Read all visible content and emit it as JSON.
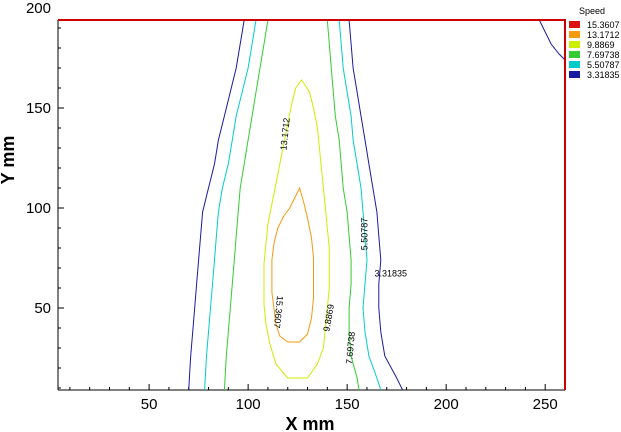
{
  "chart_data": {
    "type": "contour",
    "legend": {
      "title": "Speed",
      "levels": [
        {
          "label": "15.3607",
          "color": "#dd1111"
        },
        {
          "label": "13.1712",
          "color": "#f59a0c"
        },
        {
          "label": "9.8869",
          "color": "#ccee00"
        },
        {
          "label": "7.69738",
          "color": "#33cc33"
        },
        {
          "label": "5.50787",
          "color": "#00cccc"
        },
        {
          "label": "3.31835",
          "color": "#1a1aa0"
        }
      ]
    },
    "xlabel": "X mm",
    "ylabel": "Y mm",
    "xlim": [
      4,
      260
    ],
    "ylim": [
      9,
      194
    ],
    "xticks": [
      50,
      100,
      150,
      200,
      250
    ],
    "yticks": [
      50,
      100,
      150,
      200
    ],
    "plot_border_color": "#cc0000",
    "contours": [
      {
        "name": "contour-3-31835-left",
        "color": "#1a1aa0",
        "points": [
          [
            98,
            194
          ],
          [
            96,
            182
          ],
          [
            94,
            170
          ],
          [
            91,
            158
          ],
          [
            88,
            146
          ],
          [
            85,
            134
          ],
          [
            83,
            122
          ],
          [
            80,
            110
          ],
          [
            77,
            98
          ],
          [
            76,
            86
          ],
          [
            75,
            74
          ],
          [
            74,
            62
          ],
          [
            73,
            50
          ],
          [
            72,
            38
          ],
          [
            71,
            26
          ],
          [
            70,
            9
          ]
        ]
      },
      {
        "name": "contour-3-31835-right",
        "color": "#1a1aa0",
        "points": [
          [
            151,
            194
          ],
          [
            152,
            182
          ],
          [
            153,
            170
          ],
          [
            155,
            158
          ],
          [
            157,
            146
          ],
          [
            159,
            134
          ],
          [
            161,
            122
          ],
          [
            163,
            110
          ],
          [
            165,
            98
          ],
          [
            166,
            86
          ],
          [
            167,
            74
          ],
          [
            166,
            62
          ],
          [
            166,
            50
          ],
          [
            167,
            38
          ],
          [
            169,
            26
          ],
          [
            175,
            15
          ],
          [
            178,
            9
          ]
        ]
      },
      {
        "name": "contour-3-31835-corner",
        "color": "#1a1aa0",
        "points": [
          [
            247,
            194
          ],
          [
            250,
            188
          ],
          [
            253,
            182
          ],
          [
            257,
            177
          ],
          [
            260,
            174
          ]
        ]
      },
      {
        "name": "contour-5-50787-left",
        "color": "#00cccc",
        "points": [
          [
            104,
            194
          ],
          [
            102,
            182
          ],
          [
            100,
            170
          ],
          [
            97,
            158
          ],
          [
            94,
            146
          ],
          [
            92,
            134
          ],
          [
            90,
            122
          ],
          [
            87,
            110
          ],
          [
            85,
            98
          ],
          [
            84,
            86
          ],
          [
            83,
            74
          ],
          [
            82,
            62
          ],
          [
            81,
            50
          ],
          [
            80,
            38
          ],
          [
            79,
            26
          ],
          [
            78,
            9
          ]
        ]
      },
      {
        "name": "contour-5-50787-right",
        "color": "#00cccc",
        "points": [
          [
            146,
            194
          ],
          [
            147,
            182
          ],
          [
            148,
            170
          ],
          [
            150,
            158
          ],
          [
            152,
            146
          ],
          [
            153,
            134
          ],
          [
            155,
            122
          ],
          [
            157,
            110
          ],
          [
            158,
            98
          ],
          [
            159,
            86
          ],
          [
            160,
            74
          ],
          [
            159,
            62
          ],
          [
            158,
            50
          ],
          [
            159,
            38
          ],
          [
            161,
            26
          ],
          [
            165,
            15
          ],
          [
            167,
            9
          ]
        ]
      },
      {
        "name": "contour-7-69738-left",
        "color": "#33cc33",
        "points": [
          [
            110,
            194
          ],
          [
            108,
            182
          ],
          [
            106,
            170
          ],
          [
            104,
            158
          ],
          [
            102,
            146
          ],
          [
            100,
            134
          ],
          [
            98,
            122
          ],
          [
            96,
            110
          ],
          [
            95,
            98
          ],
          [
            94,
            86
          ],
          [
            93,
            74
          ],
          [
            92,
            62
          ],
          [
            91,
            50
          ],
          [
            90,
            38
          ],
          [
            89,
            26
          ],
          [
            88,
            9
          ]
        ]
      },
      {
        "name": "contour-7-69738-right",
        "color": "#33cc33",
        "points": [
          [
            140,
            194
          ],
          [
            141,
            182
          ],
          [
            142,
            170
          ],
          [
            143,
            158
          ],
          [
            144,
            146
          ],
          [
            146,
            134
          ],
          [
            147,
            122
          ],
          [
            148,
            110
          ],
          [
            150,
            98
          ],
          [
            151,
            86
          ],
          [
            152,
            74
          ],
          [
            152,
            62
          ],
          [
            151,
            50
          ],
          [
            151,
            38
          ],
          [
            152,
            26
          ],
          [
            155,
            15
          ],
          [
            156,
            9
          ]
        ]
      },
      {
        "name": "contour-9-8869",
        "color": "#ccee00",
        "closed": true,
        "points": [
          [
            127,
            164
          ],
          [
            131,
            158
          ],
          [
            133,
            150
          ],
          [
            135,
            140
          ],
          [
            136,
            130
          ],
          [
            137,
            120
          ],
          [
            138,
            110
          ],
          [
            139,
            100
          ],
          [
            140,
            90
          ],
          [
            141,
            80
          ],
          [
            141,
            70
          ],
          [
            141,
            60
          ],
          [
            140,
            50
          ],
          [
            139,
            40
          ],
          [
            138,
            30
          ],
          [
            135,
            22
          ],
          [
            130,
            15
          ],
          [
            120,
            15
          ],
          [
            114,
            22
          ],
          [
            111,
            32
          ],
          [
            109,
            42
          ],
          [
            108,
            52
          ],
          [
            108,
            62
          ],
          [
            108,
            72
          ],
          [
            109,
            82
          ],
          [
            110,
            92
          ],
          [
            112,
            102
          ],
          [
            114,
            112
          ],
          [
            116,
            122
          ],
          [
            118,
            132
          ],
          [
            120,
            142
          ],
          [
            122,
            152
          ],
          [
            124,
            160
          ]
        ]
      },
      {
        "name": "contour-13-1712",
        "color": "#f59a0c",
        "closed": true,
        "points": [
          [
            126,
            110
          ],
          [
            128,
            103
          ],
          [
            130,
            95
          ],
          [
            132,
            85
          ],
          [
            133,
            75
          ],
          [
            133,
            65
          ],
          [
            133,
            55
          ],
          [
            132,
            45
          ],
          [
            130,
            37
          ],
          [
            126,
            33
          ],
          [
            120,
            33
          ],
          [
            116,
            36
          ],
          [
            114,
            42
          ],
          [
            113,
            50
          ],
          [
            112,
            58
          ],
          [
            112,
            66
          ],
          [
            112,
            74
          ],
          [
            113,
            82
          ],
          [
            115,
            90
          ],
          [
            118,
            96
          ],
          [
            121,
            100
          ],
          [
            124,
            106
          ]
        ]
      }
    ],
    "contour_labels": [
      {
        "text": "13.1712",
        "x": 119,
        "y": 137,
        "angle": -84
      },
      {
        "text": "5.50787",
        "x": 159,
        "y": 87,
        "angle": -90
      },
      {
        "text": "3.31835",
        "x": 172,
        "y": 67,
        "angle": 0
      },
      {
        "text": "15.3607",
        "x": 115,
        "y": 48,
        "angle": 96
      },
      {
        "text": "9.8869",
        "x": 141,
        "y": 45,
        "angle": -80
      },
      {
        "text": "7.69738",
        "x": 152,
        "y": 30,
        "angle": -85
      }
    ]
  }
}
